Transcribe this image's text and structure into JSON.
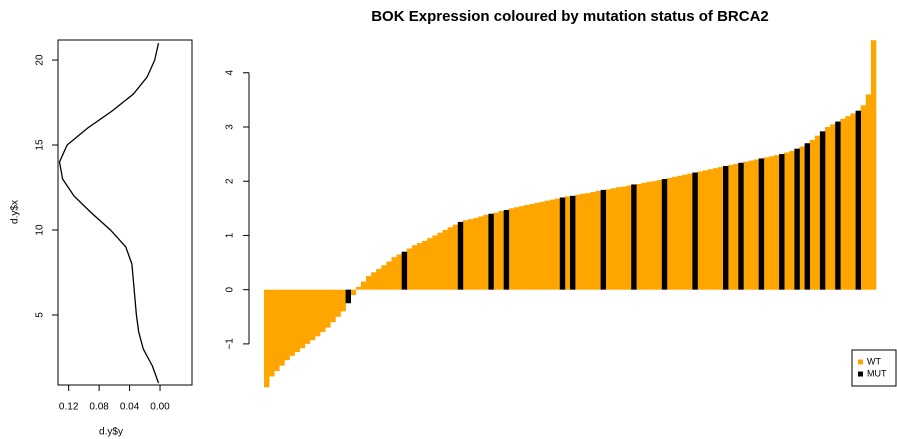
{
  "chart_data": [
    {
      "type": "line",
      "xlabel": "d.y$y",
      "ylabel": "d.y$x",
      "x": [
        0.002,
        0.01,
        0.022,
        0.028,
        0.031,
        0.033,
        0.035,
        0.037,
        0.045,
        0.065,
        0.09,
        0.113,
        0.128,
        0.132,
        0.122,
        0.095,
        0.063,
        0.035,
        0.017,
        0.007,
        0.002
      ],
      "values": [
        1,
        2,
        3,
        4,
        5,
        6,
        7,
        8,
        9,
        10,
        11,
        12,
        13,
        14,
        15,
        16,
        17,
        18,
        19,
        20,
        21
      ],
      "color": "#000000",
      "xlim": [
        0.134,
        -0.042
      ],
      "xticks": [
        0.12,
        0.08,
        0.04,
        {
          "value": 0,
          "label": "0.00"
        }
      ],
      "ylim": [
        0.88,
        21.18
      ],
      "yticks": [
        5,
        10,
        15,
        20
      ]
    },
    {
      "type": "bar",
      "title": "BOK Expression coloured by mutation status of BRCA2",
      "ylim": [
        -1.85,
        4.65
      ],
      "yticks": [
        {
          "value": -1,
          "label": "−1"
        },
        0,
        1,
        2,
        3,
        4
      ],
      "legend": "bottomright",
      "series": [
        {
          "name": "WT",
          "color": "#FFA500",
          "values": [
            -1.8,
            -1.6,
            -1.5,
            -1.4,
            -1.3,
            -1.22,
            -1.15,
            -1.08,
            -1.0,
            -0.93,
            -0.86,
            -0.78,
            -0.7,
            -0.6,
            -0.5,
            -0.4,
            null,
            -0.1,
            0.05,
            0.15,
            0.25,
            0.32,
            0.38,
            0.45,
            0.52,
            0.6,
            0.65,
            null,
            0.76,
            0.82,
            0.86,
            0.9,
            0.95,
            1.0,
            1.05,
            1.1,
            1.15,
            1.2,
            null,
            1.28,
            1.3,
            1.32,
            1.35,
            1.38,
            null,
            1.42,
            1.45,
            null,
            1.5,
            1.52,
            1.54,
            1.56,
            1.58,
            1.6,
            1.62,
            1.64,
            1.66,
            1.68,
            null,
            1.72,
            null,
            1.75,
            1.77,
            1.78,
            1.8,
            1.82,
            null,
            1.85,
            1.87,
            1.89,
            1.9,
            1.92,
            null,
            1.95,
            1.97,
            1.99,
            2.0,
            2.02,
            null,
            2.06,
            2.08,
            2.1,
            2.12,
            2.14,
            null,
            2.18,
            2.2,
            2.22,
            2.24,
            2.26,
            null,
            2.3,
            2.32,
            null,
            2.36,
            2.38,
            2.4,
            null,
            2.44,
            2.46,
            2.48,
            null,
            2.53,
            2.56,
            null,
            2.64,
            null,
            2.76,
            2.84,
            null,
            3.0,
            3.05,
            null,
            3.15,
            3.2,
            3.25,
            null,
            3.4,
            3.6,
            4.6
          ]
        },
        {
          "name": "MUT",
          "color": "#000000",
          "values": [
            null,
            null,
            null,
            null,
            null,
            null,
            null,
            null,
            null,
            null,
            null,
            null,
            null,
            null,
            null,
            null,
            -0.25,
            null,
            null,
            null,
            null,
            null,
            null,
            null,
            null,
            null,
            null,
            0.7,
            null,
            null,
            null,
            null,
            null,
            null,
            null,
            null,
            null,
            null,
            1.25,
            null,
            null,
            null,
            null,
            null,
            1.4,
            null,
            null,
            1.47,
            null,
            null,
            null,
            null,
            null,
            null,
            null,
            null,
            null,
            null,
            1.7,
            null,
            1.73,
            null,
            null,
            null,
            null,
            null,
            1.84,
            null,
            null,
            null,
            null,
            null,
            1.94,
            null,
            null,
            null,
            null,
            null,
            2.04,
            null,
            null,
            null,
            null,
            null,
            2.16,
            null,
            null,
            null,
            null,
            null,
            2.28,
            null,
            null,
            2.34,
            null,
            null,
            null,
            2.42,
            null,
            null,
            null,
            2.5,
            null,
            null,
            2.6,
            null,
            2.7,
            null,
            null,
            2.92,
            null,
            null,
            3.1,
            null,
            null,
            null,
            3.3,
            null,
            null,
            null
          ]
        }
      ]
    }
  ]
}
